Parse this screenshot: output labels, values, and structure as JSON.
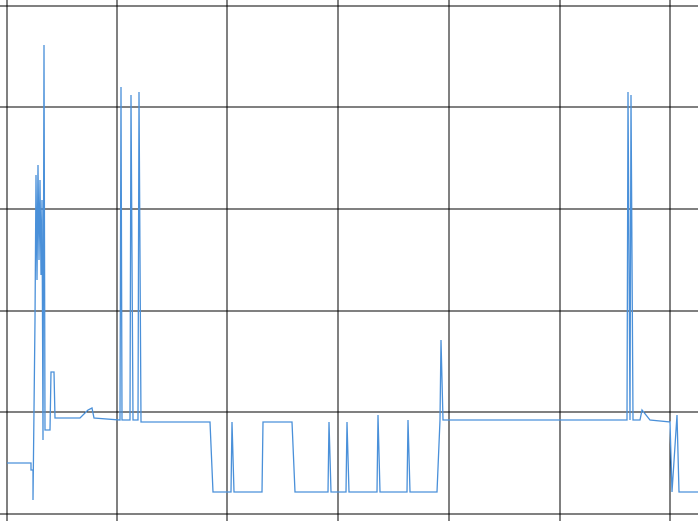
{
  "chart_data": {
    "type": "line",
    "x": [
      0,
      24,
      24,
      26,
      26,
      28,
      29,
      30,
      31,
      32,
      33,
      34,
      35,
      36,
      37,
      38,
      39,
      43,
      44,
      47,
      48,
      53,
      73,
      81,
      85,
      87,
      113,
      114,
      115,
      123,
      124,
      126,
      131,
      132,
      134,
      203,
      206,
      224,
      225,
      227,
      255,
      256,
      285,
      288,
      321,
      322,
      324,
      339,
      340,
      342,
      370,
      371,
      373,
      400,
      401,
      403,
      430,
      433,
      434,
      436,
      620,
      621,
      623,
      624,
      626,
      633,
      635,
      639,
      643,
      663,
      665,
      670,
      672,
      691
    ],
    "series": [
      {
        "color": "#4a90d9",
        "values": [
          51,
          51,
          44,
          44,
          14,
          194,
          339,
          234,
          349,
          254,
          334,
          239,
          314,
          74,
          469,
          84,
          84,
          84,
          142,
          142,
          96,
          96,
          96,
          104,
          106,
          96,
          94,
          427,
          94,
          94,
          419,
          94,
          94,
          422,
          92,
          92,
          22,
          22,
          92,
          22,
          22,
          92,
          92,
          22,
          22,
          92,
          22,
          22,
          92,
          22,
          22,
          99,
          22,
          22,
          94,
          22,
          22,
          94,
          174,
          94,
          94,
          422,
          94,
          419,
          94,
          94,
          104,
          99,
          94,
          92,
          22,
          99,
          22,
          22
        ]
      }
    ],
    "xlim": [
      0,
      691
    ],
    "ylim": [
      0,
      508
    ],
    "xticks": [
      0,
      110,
      220,
      331,
      442,
      553,
      663
    ],
    "yticks": [
      0,
      102,
      203,
      305,
      407,
      508
    ],
    "grid": true
  }
}
